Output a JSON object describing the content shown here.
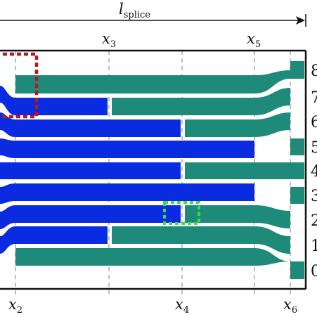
{
  "header": {
    "length_symbol": "l",
    "length_subscript": "splice"
  },
  "markers_top": [
    {
      "name": "x",
      "index": "3"
    },
    {
      "name": "x",
      "index": "5"
    }
  ],
  "markers_bottom": [
    {
      "name": "x",
      "index": "2"
    },
    {
      "name": "x",
      "index": "4"
    },
    {
      "name": "x",
      "index": "6"
    }
  ],
  "channel_numbers": [
    "8",
    "7",
    "6",
    "5",
    "4",
    "3",
    "2",
    "1",
    "0"
  ],
  "colors": {
    "blue_waveguide": "#0a2be0",
    "green_waveguide": "#1e8a7a",
    "red_highlight": "#c0141c",
    "green_highlight": "#3ee03e",
    "guide_line": "#aaaaaa"
  }
}
